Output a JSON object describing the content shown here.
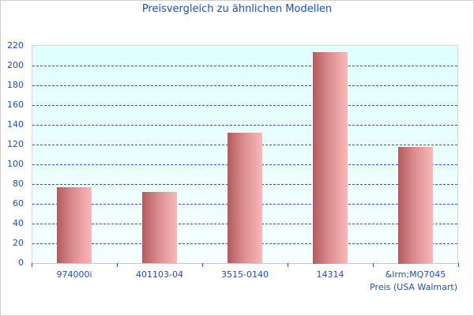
{
  "chart_data": {
    "type": "bar",
    "title": "Preisvergleich zu ähnlichen Modellen",
    "categories": [
      "974000i",
      "401103-04",
      "3515-0140",
      "14314",
      "&lrm;MQ7045"
    ],
    "series": [
      {
        "name": "Preis (USA Walmart)",
        "values": [
          77,
          72,
          132,
          214,
          118
        ]
      }
    ],
    "xlabel": "",
    "ylabel": "",
    "ylim": [
      0,
      220
    ],
    "yticks": [
      0,
      20,
      40,
      60,
      80,
      100,
      120,
      140,
      160,
      180,
      200,
      220
    ],
    "grid": true,
    "legend_position": "bottom-right",
    "colors": {
      "bar_left": "#b35a5e",
      "bar_right": "#fbb8b8",
      "plot_bg_top": "#e0fefe",
      "plot_bg_bottom": "#f6fefe",
      "text": "#1f4fb4",
      "gridline": "#2d58c8"
    }
  },
  "labels": {
    "title": "Preisvergleich zu ähnlichen Modellen",
    "series_name": "Preis (USA Walmart)",
    "y": [
      "0",
      "20",
      "40",
      "60",
      "80",
      "100",
      "120",
      "140",
      "160",
      "180",
      "200",
      "220"
    ],
    "x": [
      "974000i",
      "401103-04",
      "3515-0140",
      "14314",
      "&lrm;MQ7045"
    ]
  }
}
